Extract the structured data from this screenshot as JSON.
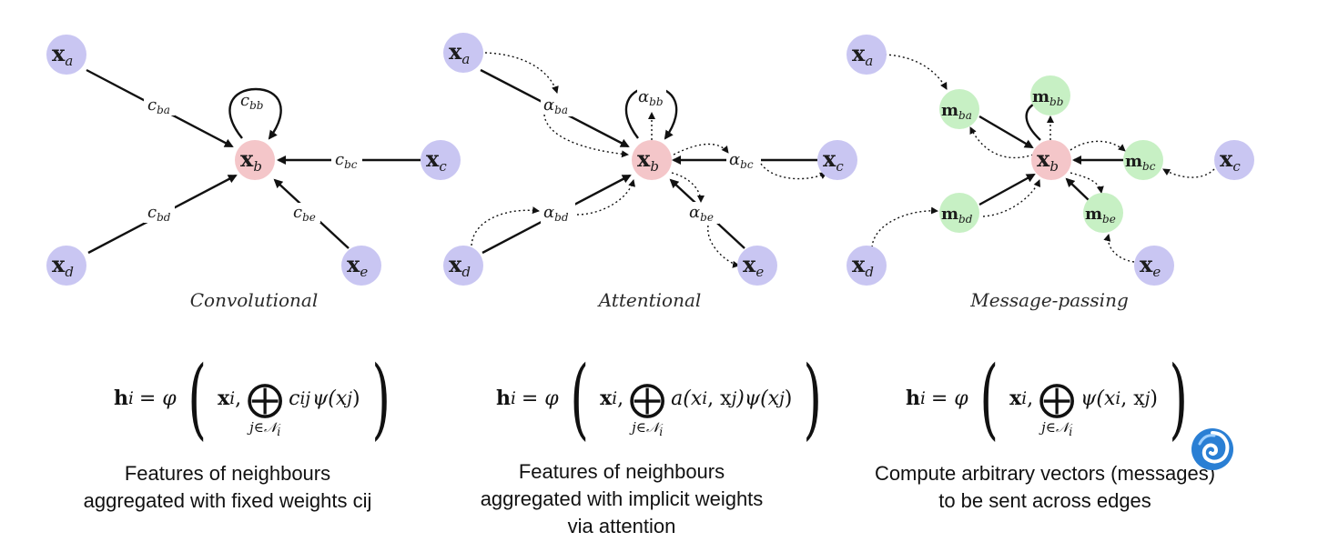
{
  "panels": [
    {
      "caption": "Convolutional",
      "formula": {
        "lhs": "h",
        "lhs_sub": "i",
        "eq": "= φ",
        "arg": "x",
        "arg_sub": "i",
        "under": "j∈𝒩",
        "under_sub": "i",
        "term": "c",
        "term_sub": "ij",
        "tail": "ψ(x",
        "tail_sub": "j",
        "tail_end": ")"
      },
      "description": [
        "Features of neighbours",
        "aggregated with fixed weights cij"
      ]
    },
    {
      "caption": "Attentional",
      "formula": {
        "lhs": "h",
        "lhs_sub": "i",
        "eq": "= φ",
        "arg": "x",
        "arg_sub": "i",
        "under": "j∈𝒩",
        "under_sub": "i",
        "term": "a(x",
        "term_sub": "i",
        "term2": ", x",
        "term2_sub": "j",
        "tail": ")ψ(x",
        "tail_sub": "j",
        "tail_end": ")"
      },
      "description": [
        "Features of neighbours",
        "aggregated with implicit weights",
        "via attention"
      ]
    },
    {
      "caption": "Message-passing",
      "formula": {
        "lhs": "h",
        "lhs_sub": "i",
        "eq": "= φ",
        "arg": "x",
        "arg_sub": "i",
        "under": "j∈𝒩",
        "under_sub": "i",
        "term": "ψ(x",
        "term_sub": "i",
        "term2": ", x",
        "term2_sub": "j",
        "tail": ")",
        "tail_sub": "",
        "tail_end": ""
      },
      "description": [
        "Compute arbitrary vectors (messages)",
        "to be sent across edges"
      ]
    }
  ],
  "nodes": {
    "xa": {
      "base": "x",
      "sub": "a"
    },
    "xb": {
      "base": "x",
      "sub": "b"
    },
    "xc": {
      "base": "x",
      "sub": "c"
    },
    "xd": {
      "base": "x",
      "sub": "d"
    },
    "xe": {
      "base": "x",
      "sub": "e"
    }
  },
  "edge_labels": {
    "conv": {
      "ba": "ba",
      "bb": "bb",
      "bc": "bc",
      "bd": "bd",
      "be": "be",
      "symbol": "c"
    },
    "attn": {
      "ba": "ba",
      "bb": "bb",
      "bc": "bc",
      "bd": "bd",
      "be": "be",
      "symbol": "α"
    },
    "msg": {
      "ba": "ba",
      "bb": "bb",
      "bc": "bc",
      "bd": "bd",
      "be": "be",
      "symbol": "m"
    }
  },
  "colors": {
    "neighbour": "#c9c6f2",
    "center": "#f4c6c9",
    "message": "#c7f0c4",
    "edge": "#111111",
    "logo": "#2a7fd4"
  },
  "icons": {
    "logo": "swirl-logo-icon"
  }
}
